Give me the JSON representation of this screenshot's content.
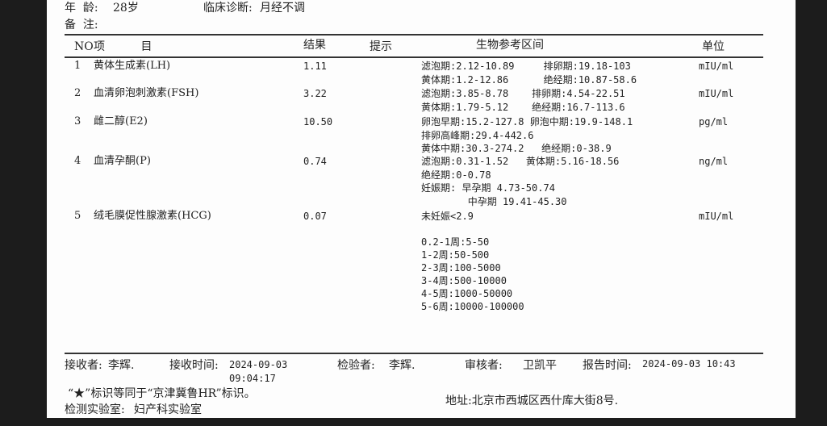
{
  "patient": {
    "age_label": "年  龄:",
    "age": "28岁",
    "diagnosis_label": "临床诊断:",
    "diagnosis": "月经不调",
    "remark_label": "备  注:"
  },
  "table": {
    "headers": {
      "no": "NO",
      "item": "项          目",
      "result": "结果",
      "hint": "提示",
      "reference": "生物参考区间",
      "unit": "单位"
    },
    "rows": [
      {
        "no": "1",
        "item": "黄体生成素(LH)",
        "result": "1.11",
        "ref": [
          "滤泡期:2.12-10.89     排卵期:19.18-103",
          "黄体期:1.2-12.86      绝经期:10.87-58.6"
        ],
        "unit": "mIU/ml"
      },
      {
        "no": "2",
        "item": "血清卵泡刺激素(FSH)",
        "result": "3.22",
        "ref": [
          "滤泡期:3.85-8.78    排卵期:4.54-22.51",
          "黄体期:1.79-5.12    绝经期:16.7-113.6"
        ],
        "unit": "mIU/ml"
      },
      {
        "no": "3",
        "item": "雌二醇(E2)",
        "result": "10.50",
        "ref": [
          "卵泡早期:15.2-127.8 卵泡中期:19.9-148.1",
          "排卵高峰期:29.4-442.6",
          "黄体中期:30.3-274.2   绝经期:0-38.9"
        ],
        "unit": "pg/ml"
      },
      {
        "no": "4",
        "item": "血清孕酮(P)",
        "result": "0.74",
        "ref": [
          "滤泡期:0.31-1.52   黄体期:5.16-18.56",
          "绝经期:0-0.78",
          "妊娠期: 早孕期 4.73-50.74",
          "        中孕期 19.41-45.30"
        ],
        "unit": "ng/ml"
      },
      {
        "no": "5",
        "item": "绒毛膜促性腺激素(HCG)",
        "result": "0.07",
        "ref": [
          "未妊娠<2.9",
          "",
          "0.2-1周:5-50",
          "1-2周:50-500",
          "2-3周:100-5000",
          "3-4周:500-10000",
          "4-5周:1000-50000",
          "5-6周:10000-100000"
        ],
        "unit": "mIU/ml"
      }
    ]
  },
  "footer": {
    "receiver_label": "接收者:",
    "receiver": "李辉.",
    "receive_time_label": "接收时间:",
    "receive_date": "2024-09-03",
    "receive_time": "09:04:17",
    "inspector_label": "检验者:",
    "inspector": "李辉.",
    "reviewer_label": "审核者:",
    "reviewer": "卫凯平",
    "report_time_label": "报告时间:",
    "report_time": "2024-09-03 10:43",
    "star_note": "“★”标识等同于“京津冀鲁HR”标识。",
    "lab_label": "检测实验室:",
    "lab": "妇产科实验室",
    "address": "地址:北京市西城区西什库大街8号."
  }
}
